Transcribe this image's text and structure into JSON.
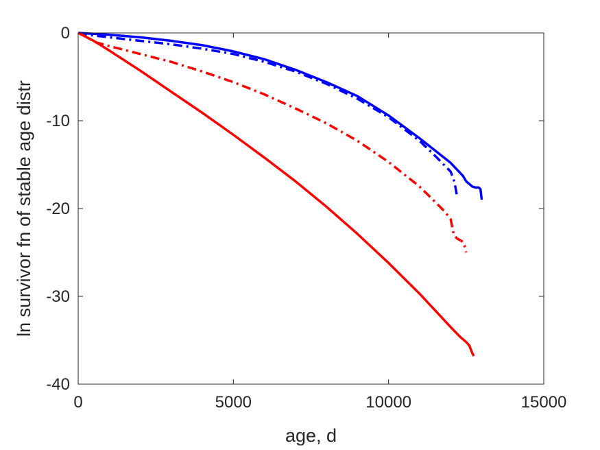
{
  "chart_data": {
    "type": "line",
    "title": "",
    "xlabel": "age, d",
    "ylabel": "ln survivor fn of stable age distr",
    "xlim": [
      0,
      15000
    ],
    "ylim": [
      -40,
      0
    ],
    "xticks": [
      0,
      5000,
      10000,
      15000
    ],
    "yticks": [
      -40,
      -30,
      -20,
      -10,
      0
    ],
    "xtick_labels": [
      "0",
      "5000",
      "10000",
      "15000"
    ],
    "ytick_labels": [
      "-40",
      "-30",
      "-20",
      "-10",
      "0"
    ],
    "grid": false,
    "legend": "none",
    "series": [
      {
        "color": "#0000ff",
        "style": "solid",
        "x": [
          0,
          500,
          1000,
          2000,
          3000,
          4000,
          5000,
          6000,
          7000,
          8000,
          9000,
          10000,
          11000,
          12000,
          12400,
          12500,
          12700,
          12800,
          12900,
          12960,
          13000
        ],
        "y": [
          0,
          -0.1,
          -0.2,
          -0.5,
          -0.9,
          -1.4,
          -2.1,
          -3.0,
          -4.2,
          -5.6,
          -7.2,
          -9.4,
          -12.0,
          -14.8,
          -16.3,
          -16.9,
          -17.5,
          -17.6,
          -17.6,
          -17.8,
          -19.0
        ]
      },
      {
        "color": "#0000ff",
        "style": "dashdot",
        "x": [
          0,
          300,
          500,
          1000,
          2000,
          3000,
          4000,
          5000,
          6000,
          7000,
          8000,
          9000,
          10000,
          11000,
          11500,
          12000,
          12100,
          12150,
          12200
        ],
        "y": [
          0,
          -0.2,
          -0.3,
          -0.5,
          -0.9,
          -1.3,
          -1.8,
          -2.4,
          -3.3,
          -4.4,
          -5.8,
          -7.5,
          -9.6,
          -12.3,
          -14.0,
          -15.8,
          -16.7,
          -17.5,
          -18.5
        ]
      },
      {
        "color": "#ff0000",
        "style": "dashdot",
        "x": [
          0,
          300,
          500,
          1000,
          2000,
          3000,
          4000,
          5000,
          6000,
          7000,
          8000,
          9000,
          10000,
          11000,
          11800,
          12000,
          12100,
          12200,
          12400,
          12450,
          12500
        ],
        "y": [
          0,
          -0.5,
          -1.0,
          -1.5,
          -2.4,
          -3.3,
          -4.4,
          -5.6,
          -7.0,
          -8.6,
          -10.3,
          -12.3,
          -14.7,
          -17.5,
          -20.3,
          -21.2,
          -23.0,
          -23.4,
          -23.8,
          -24.3,
          -25.0
        ]
      },
      {
        "color": "#ff0000",
        "style": "solid",
        "x": [
          0,
          500,
          1000,
          2000,
          3000,
          4000,
          5000,
          6000,
          7000,
          8000,
          9000,
          10000,
          11000,
          12000,
          12300,
          12500,
          12600,
          12700,
          12750
        ],
        "y": [
          0,
          -0.9,
          -2.0,
          -4.3,
          -6.7,
          -9.1,
          -11.6,
          -14.2,
          -16.9,
          -19.8,
          -22.9,
          -26.2,
          -29.7,
          -33.5,
          -34.6,
          -35.2,
          -35.6,
          -36.5,
          -36.8
        ]
      }
    ]
  }
}
